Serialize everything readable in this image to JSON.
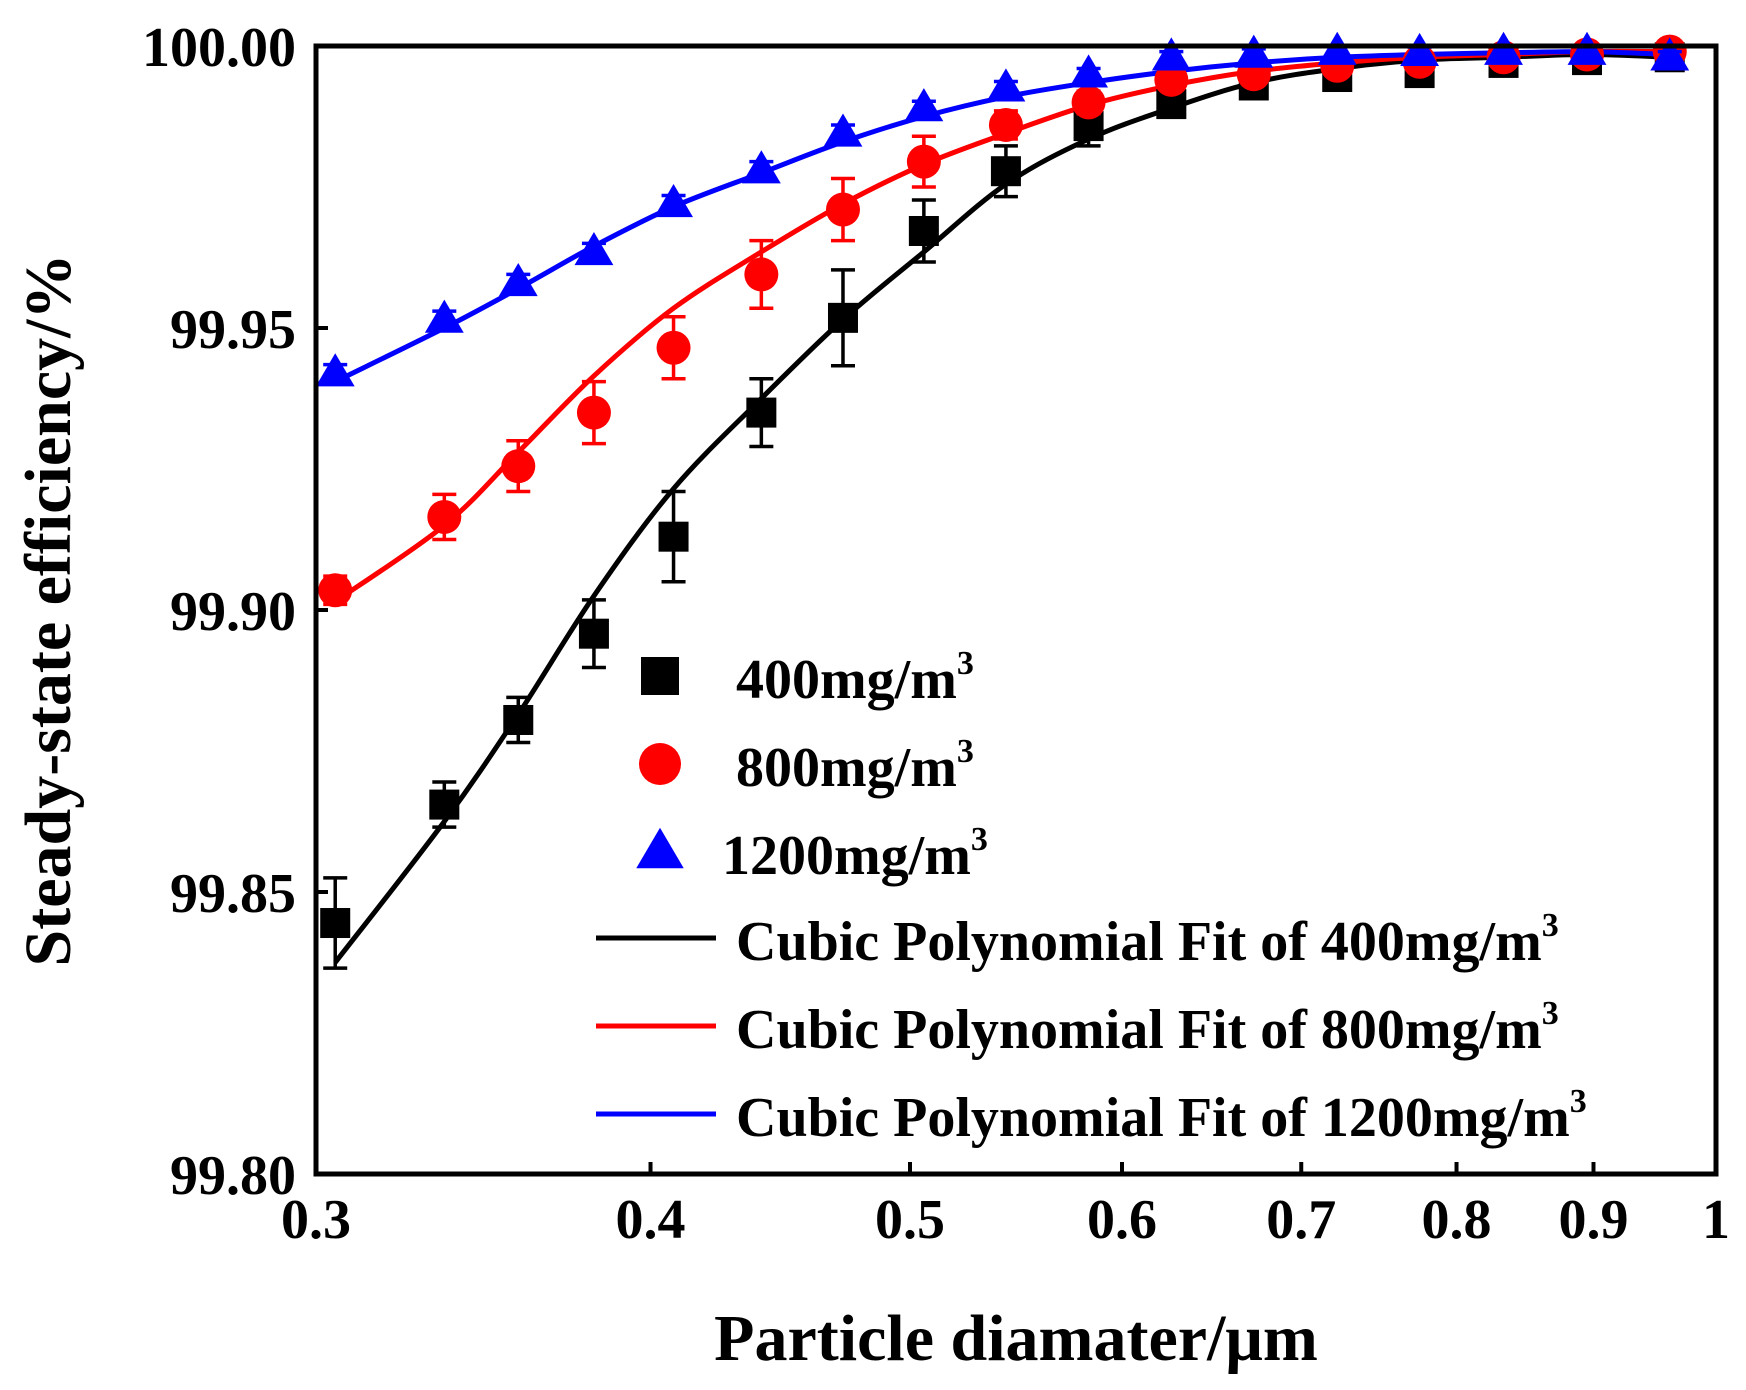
{
  "chart_data": {
    "type": "scatter",
    "xlabel": "Particle diamater/μm",
    "ylabel": "Steady-state efficiency/%",
    "xlim": [
      0.3,
      1.0
    ],
    "ylim": [
      99.8,
      100.0
    ],
    "x_tick_values": [
      0.3,
      0.4,
      0.5,
      0.6,
      0.7,
      0.8,
      0.9,
      1.0
    ],
    "x_tick_labels": [
      "0.3",
      "0.4",
      "0.5",
      "0.6",
      "0.7",
      "0.8",
      "0.9",
      "1"
    ],
    "y_tick_values": [
      99.8,
      99.85,
      99.9,
      99.95,
      100.0
    ],
    "y_tick_labels": [
      "99.80",
      "99.85",
      "99.90",
      "99.95",
      "100.00"
    ],
    "x_scale": "log",
    "grid": false,
    "legend_position": "center-right",
    "x": [
      0.305,
      0.335,
      0.357,
      0.381,
      0.408,
      0.44,
      0.472,
      0.506,
      0.543,
      0.583,
      0.626,
      0.672,
      0.722,
      0.775,
      0.833,
      0.895,
      0.961
    ],
    "series": [
      {
        "name": "400mg/m",
        "superscript": "3",
        "marker": "square",
        "color": "#000000",
        "values": [
          99.8445,
          99.8655,
          99.8805,
          99.8958,
          99.913,
          99.935,
          99.9518,
          99.9672,
          99.9778,
          99.9858,
          99.9897,
          99.993,
          99.9945,
          99.9952,
          99.997,
          99.9975,
          99.998
        ],
        "errors": [
          0.008,
          0.004,
          0.004,
          0.006,
          0.008,
          0.006,
          0.0085,
          0.0055,
          0.0045,
          0.0035,
          0.002,
          0.0015,
          0.0015,
          0.0012,
          0.0012,
          0.001,
          0.001
        ]
      },
      {
        "name": "800mg/m",
        "superscript": "3",
        "marker": "circle",
        "color": "#ff0000",
        "values": [
          99.9035,
          99.9165,
          99.9255,
          99.935,
          99.9465,
          99.9595,
          99.971,
          99.9795,
          99.986,
          99.99,
          99.994,
          99.995,
          99.9965,
          99.9972,
          99.998,
          99.9985,
          99.999
        ],
        "errors": [
          0.0025,
          0.004,
          0.0045,
          0.0055,
          0.0055,
          0.006,
          0.0055,
          0.0045,
          0.0025,
          0.002,
          0.0015,
          0.0012,
          0.001,
          0.001,
          0.001,
          0.001,
          0.001
        ]
      },
      {
        "name": "1200mg/m",
        "superscript": "3",
        "marker": "triangle",
        "color": "#0000ff",
        "values": [
          99.942,
          99.9515,
          99.958,
          99.9635,
          99.972,
          99.978,
          99.9845,
          99.989,
          99.9925,
          99.995,
          99.998,
          99.9985,
          99.999,
          99.9988,
          99.999,
          99.999,
          99.998
        ],
        "errors": [
          0.0015,
          0.0015,
          0.0015,
          0.0015,
          0.0015,
          0.0015,
          0.0015,
          0.0012,
          0.0012,
          0.001,
          0.001,
          0.001,
          0.001,
          0.001,
          0.001,
          0.001,
          0.001
        ]
      }
    ],
    "fits": [
      {
        "name": "Cubic Polynomial Fit of 400mg/m",
        "superscript": "3",
        "color": "#000000",
        "x": [
          0.305,
          0.335,
          0.357,
          0.381,
          0.408,
          0.44,
          0.472,
          0.506,
          0.543,
          0.583,
          0.626,
          0.672,
          0.722,
          0.775,
          0.833,
          0.895,
          0.961
        ],
        "values": [
          99.8375,
          99.8625,
          99.8815,
          99.9025,
          99.9215,
          99.9375,
          99.9515,
          99.9635,
          99.9755,
          99.9835,
          99.989,
          99.9935,
          99.996,
          99.9975,
          99.998,
          99.9985,
          99.998
        ]
      },
      {
        "name": "Cubic Polynomial Fit of 800mg/m",
        "superscript": "3",
        "color": "#ff0000",
        "x": [
          0.305,
          0.335,
          0.357,
          0.381,
          0.408,
          0.44,
          0.472,
          0.506,
          0.543,
          0.583,
          0.626,
          0.672,
          0.722,
          0.775,
          0.833,
          0.895,
          0.961
        ],
        "values": [
          99.9015,
          99.915,
          99.928,
          99.9415,
          99.9535,
          99.9635,
          99.972,
          99.979,
          99.9845,
          99.9895,
          99.993,
          99.9955,
          99.997,
          99.998,
          99.9985,
          99.999,
          99.999
        ]
      },
      {
        "name": "Cubic Polynomial Fit of 1200mg/m",
        "superscript": "3",
        "color": "#0000ff",
        "x": [
          0.305,
          0.335,
          0.357,
          0.381,
          0.408,
          0.44,
          0.472,
          0.506,
          0.543,
          0.583,
          0.626,
          0.672,
          0.722,
          0.775,
          0.833,
          0.895,
          0.961
        ],
        "values": [
          99.9405,
          99.95,
          99.957,
          99.9645,
          99.9715,
          99.9775,
          99.983,
          99.9875,
          99.991,
          99.9935,
          99.9955,
          99.997,
          99.998,
          99.9985,
          99.9988,
          99.999,
          99.9985
        ]
      }
    ]
  }
}
